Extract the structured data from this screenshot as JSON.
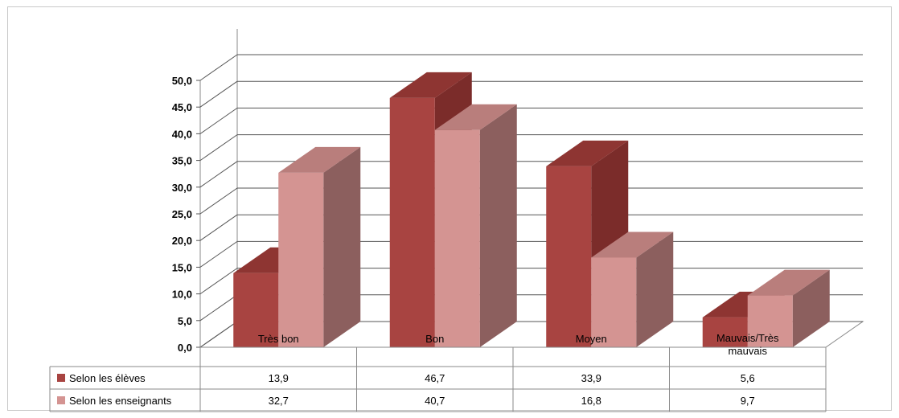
{
  "chart_data": {
    "type": "bar",
    "style": "3d-clustered-column-with-data-table",
    "categories": [
      "Très bon",
      "Bon",
      "Moyen",
      "Mauvais/Très mauvais"
    ],
    "category_lines": [
      [
        "Très bon"
      ],
      [
        "Bon"
      ],
      [
        "Moyen"
      ],
      [
        "Mauvais/Très",
        "mauvais"
      ]
    ],
    "series": [
      {
        "name": "Selon les élèves",
        "values": [
          13.9,
          46.7,
          33.9,
          5.6
        ],
        "labels": [
          "13,9",
          "46,7",
          "33,9",
          "5,6"
        ],
        "color": "#a84441",
        "side_color": "#7b2c2a",
        "top_color": "#8e3532"
      },
      {
        "name": "Selon les enseignants",
        "values": [
          32.7,
          40.7,
          16.8,
          9.7
        ],
        "labels": [
          "32,7",
          "40,7",
          "16,8",
          "9,7"
        ],
        "color": "#d49492",
        "side_color": "#8c5f5e",
        "top_color": "#b97e7c"
      }
    ],
    "yticks": [
      "0,0",
      "5,0",
      "10,0",
      "15,0",
      "20,0",
      "25,0",
      "30,0",
      "35,0",
      "40,0",
      "45,0",
      "50,0"
    ],
    "ylim": [
      0,
      50
    ],
    "grid": true,
    "legend": "data-table-left"
  }
}
